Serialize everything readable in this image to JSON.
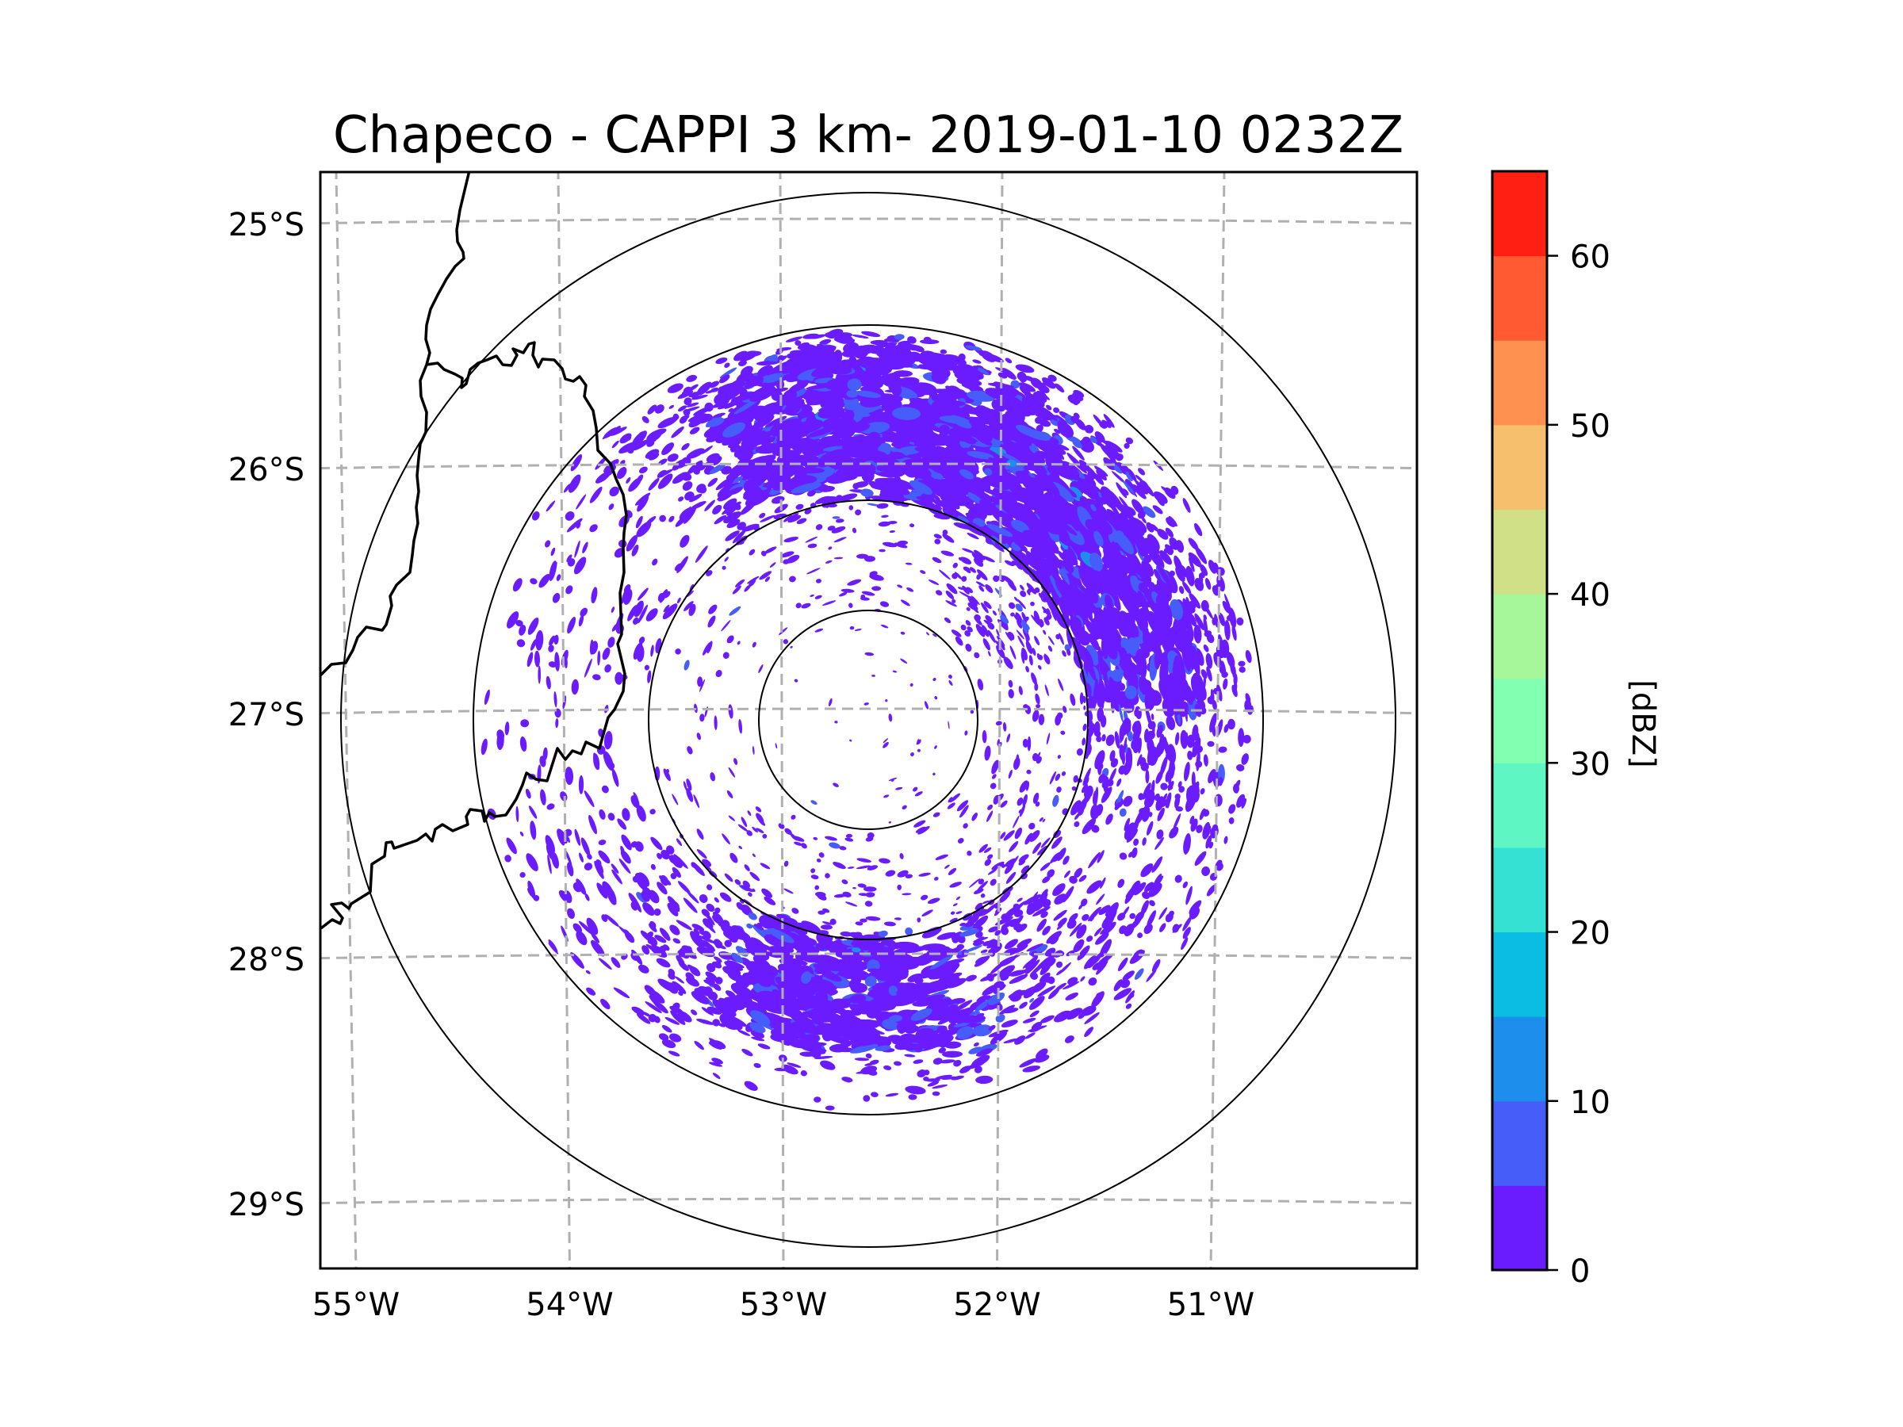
{
  "chart_data": {
    "type": "heatmap",
    "subtype": "radar-ppi-map",
    "title": "Chapeco - CAPPI 3 km- 2019-01-10 0232Z",
    "xlabel": "",
    "ylabel": "",
    "x_ticks": [
      {
        "value": -55,
        "label": "55°W"
      },
      {
        "value": -54,
        "label": "54°W"
      },
      {
        "value": -53,
        "label": "53°W"
      },
      {
        "value": -52,
        "label": "52°W"
      },
      {
        "value": -51,
        "label": "51°W"
      }
    ],
    "y_ticks": [
      {
        "value": -25,
        "label": "25°S"
      },
      {
        "value": -26,
        "label": "26°S"
      },
      {
        "value": -27,
        "label": "27°S"
      },
      {
        "value": -28,
        "label": "28°S"
      },
      {
        "value": -29,
        "label": "29°S"
      }
    ],
    "xlim": [
      -55.2,
      -50.1
    ],
    "ylim": [
      -29.3,
      -24.8
    ],
    "grid": true,
    "radar_site": {
      "name": "Chapeco",
      "lon": -52.6,
      "lat": -27.03
    },
    "range_rings_count": 4,
    "colorbar": {
      "label": "[dBZ]",
      "placement": "right",
      "range": [
        0,
        65
      ],
      "levels": [
        0,
        5,
        10,
        15,
        20,
        25,
        30,
        35,
        40,
        45,
        50,
        55,
        60,
        65
      ],
      "colors": [
        "#6b1cff",
        "#465dfa",
        "#1e8eec",
        "#0bbde2",
        "#35e1d2",
        "#5ef7c4",
        "#82ffb0",
        "#a6f799",
        "#d0e087",
        "#f5bf6e",
        "#ff9150",
        "#ff5a31",
        "#ff1f13"
      ],
      "ticks": [
        {
          "value": 0,
          "label": "0"
        },
        {
          "value": 10,
          "label": "10"
        },
        {
          "value": 20,
          "label": "20"
        },
        {
          "value": 30,
          "label": "30"
        },
        {
          "value": 40,
          "label": "40"
        },
        {
          "value": 50,
          "label": "50"
        },
        {
          "value": 60,
          "label": "60"
        }
      ]
    },
    "observed_reflectivity": {
      "dominant_bin_dbz": [
        0,
        5
      ],
      "secondary_bin_dbz": [
        5,
        10
      ],
      "max_visible_bin_dbz": [
        10,
        20
      ],
      "description": "Widespread weak echoes (mostly 0-5 dBZ) in a ring around the radar, densest to the north-east and south"
    }
  }
}
